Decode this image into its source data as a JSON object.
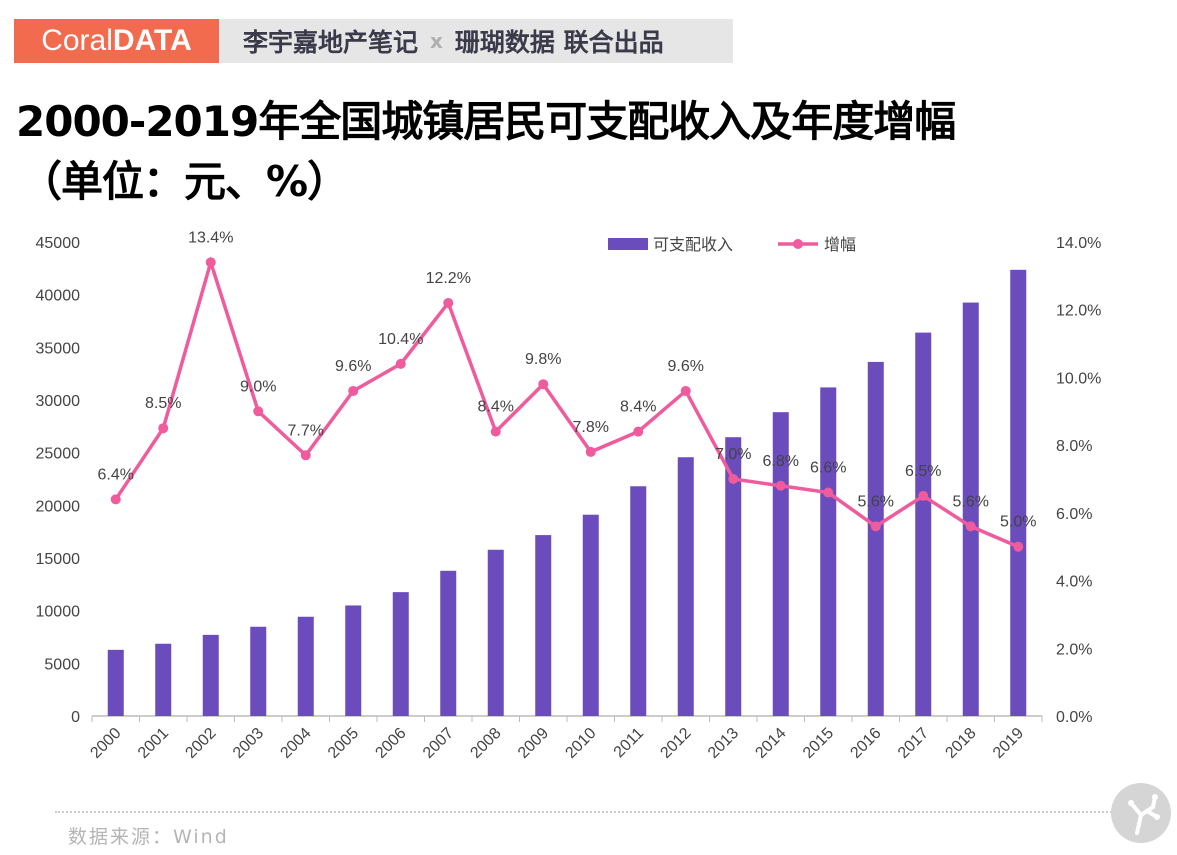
{
  "brand": {
    "logo_light": "Coral",
    "logo_bold": "DATA",
    "left": "李宇嘉地产笔记",
    "sep": "x",
    "right": "珊瑚数据 联合出品"
  },
  "title": {
    "line1": "2000-2019年全国城镇居民可支配收入及年度增幅",
    "line2": "（单位：元、%）"
  },
  "source": "数据来源：Wind",
  "colors": {
    "bar": "#6a4cbc",
    "line": "#ef5b9c",
    "brand": "#f26b4f"
  },
  "chart_data": {
    "type": "bar+line",
    "categories": [
      "2000",
      "2001",
      "2002",
      "2003",
      "2004",
      "2005",
      "2006",
      "2007",
      "2008",
      "2009",
      "2010",
      "2011",
      "2012",
      "2013",
      "2014",
      "2015",
      "2016",
      "2017",
      "2018",
      "2019"
    ],
    "series": [
      {
        "name": "可支配收入",
        "type": "bar",
        "axis": "left",
        "values": [
          6280,
          6860,
          7703,
          8472,
          9422,
          10493,
          11759,
          13786,
          15781,
          17175,
          19109,
          21810,
          24565,
          26467,
          28844,
          31195,
          33616,
          36396,
          39251,
          42359
        ]
      },
      {
        "name": "增幅",
        "type": "line",
        "axis": "right",
        "values": [
          6.4,
          8.5,
          13.4,
          9.0,
          7.7,
          9.6,
          10.4,
          12.2,
          8.4,
          9.8,
          7.8,
          8.4,
          9.6,
          7.0,
          6.8,
          6.6,
          5.6,
          6.5,
          5.6,
          5.0
        ],
        "labels": [
          "6.4%",
          "8.5%",
          "13.4%",
          "9.0%",
          "7.7%",
          "9.6%",
          "10.4%",
          "12.2%",
          "8.4%",
          "9.8%",
          "7.8%",
          "8.4%",
          "9.6%",
          "7.0%",
          "6.8%",
          "6.6%",
          "5.6%",
          "6.5%",
          "5.6%",
          "5.0%"
        ]
      }
    ],
    "yleft": {
      "lim": [
        0,
        45000
      ],
      "ticks": [
        "0",
        "5000",
        "10000",
        "15000",
        "20000",
        "25000",
        "30000",
        "35000",
        "40000",
        "45000"
      ]
    },
    "yright": {
      "lim": [
        0,
        14
      ],
      "ticks": [
        "0.0%",
        "2.0%",
        "4.0%",
        "6.0%",
        "8.0%",
        "10.0%",
        "12.0%",
        "14.0%"
      ]
    },
    "legend": "top-right",
    "grid": false
  }
}
